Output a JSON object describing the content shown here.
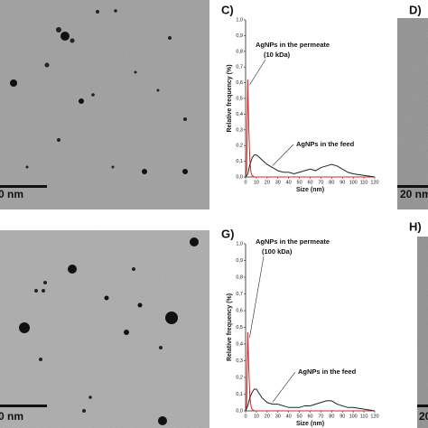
{
  "panels": [
    {
      "label": null,
      "scale_bar": "0 nm"
    },
    {
      "label": "D)",
      "scale_bar": "20 nm"
    },
    {
      "label": null,
      "scale_bar": "0 nm"
    },
    {
      "label": "H)",
      "scale_bar": "20"
    }
  ],
  "chart_data": [
    {
      "type": "line",
      "title": "C)",
      "xlabel": "Size (nm)",
      "ylabel": "Relative frequency (%)",
      "annotations": [
        "AgNPs in the permeate",
        "(10 kDa)",
        "AgNPs in the feed"
      ],
      "xlim": [
        0,
        120
      ],
      "xticks": [
        0,
        10,
        20,
        30,
        40,
        50,
        60,
        70,
        80,
        90,
        100,
        110,
        120
      ],
      "ylim": [
        0,
        1
      ],
      "yticks": [
        {
          "value": 0,
          "label": "0,0"
        },
        {
          "value": 0.1,
          "label": "0,1"
        },
        {
          "value": 0.2,
          "label": "0,2"
        },
        {
          "value": 0.3,
          "label": "0,3"
        },
        {
          "value": 0.4,
          "label": "0,4"
        },
        {
          "value": 0.5,
          "label": "0,5"
        },
        {
          "value": 0.6,
          "label": "0,6"
        },
        {
          "value": 0.7,
          "label": "0,7"
        },
        {
          "value": 0.8,
          "label": "0,8"
        },
        {
          "value": 0.9,
          "label": "0,9"
        },
        {
          "value": 1,
          "label": "1,0"
        }
      ],
      "series": [
        {
          "name": "AgNPs in the permeate",
          "color": "#e02020",
          "x": [
            0,
            1,
            2,
            3,
            4,
            5,
            6,
            8,
            10,
            20,
            40,
            120
          ],
          "values": [
            0,
            0.05,
            0.62,
            0.3,
            0.1,
            0.03,
            0.01,
            0,
            0,
            0,
            0,
            0
          ]
        },
        {
          "name": "AgNPs in the feed",
          "color": "#222222",
          "x": [
            0,
            2,
            4,
            6,
            8,
            10,
            12,
            15,
            20,
            25,
            30,
            35,
            40,
            45,
            50,
            55,
            60,
            65,
            70,
            75,
            80,
            85,
            90,
            95,
            100,
            110,
            120
          ],
          "values": [
            0,
            0.02,
            0.08,
            0.12,
            0.14,
            0.14,
            0.13,
            0.11,
            0.08,
            0.06,
            0.04,
            0.03,
            0.03,
            0.02,
            0.03,
            0.04,
            0.05,
            0.04,
            0.06,
            0.07,
            0.08,
            0.07,
            0.05,
            0.03,
            0.02,
            0.01,
            0
          ]
        }
      ]
    },
    {
      "type": "line",
      "title": "G)",
      "xlabel": "Size (nm)",
      "ylabel": "Relative frequency (%)",
      "annotations": [
        "AgNPs in the permeate",
        "(100 kDa)",
        "AgNPs in the feed"
      ],
      "xlim": [
        0,
        120
      ],
      "xticks": [
        0,
        10,
        20,
        30,
        40,
        50,
        60,
        70,
        80,
        90,
        100,
        110,
        120
      ],
      "ylim": [
        0,
        1
      ],
      "yticks": [
        {
          "value": 0,
          "label": "0,0"
        },
        {
          "value": 0.1,
          "label": "0,1"
        },
        {
          "value": 0.2,
          "label": "0,2"
        },
        {
          "value": 0.3,
          "label": "0,3"
        },
        {
          "value": 0.4,
          "label": "0,4"
        },
        {
          "value": 0.5,
          "label": "0,5"
        },
        {
          "value": 0.6,
          "label": "0,6"
        },
        {
          "value": 0.7,
          "label": "0,7"
        },
        {
          "value": 0.8,
          "label": "0,8"
        },
        {
          "value": 0.9,
          "label": "0,9"
        },
        {
          "value": 1,
          "label": "1,0"
        }
      ],
      "series": [
        {
          "name": "AgNPs in the permeate",
          "color": "#e02020",
          "x": [
            0,
            1,
            2,
            3,
            4,
            5,
            6,
            8,
            10,
            20,
            40,
            120
          ],
          "values": [
            0,
            0.04,
            0.47,
            0.25,
            0.08,
            0.03,
            0.01,
            0,
            0,
            0,
            0,
            0
          ]
        },
        {
          "name": "AgNPs in the feed",
          "color": "#222222",
          "x": [
            0,
            2,
            4,
            6,
            8,
            10,
            12,
            15,
            20,
            25,
            30,
            35,
            40,
            45,
            50,
            55,
            60,
            65,
            70,
            75,
            80,
            85,
            90,
            95,
            100,
            110,
            120
          ],
          "values": [
            0,
            0.03,
            0.08,
            0.11,
            0.13,
            0.13,
            0.11,
            0.08,
            0.05,
            0.04,
            0.04,
            0.03,
            0.02,
            0.02,
            0.02,
            0.03,
            0.03,
            0.04,
            0.05,
            0.06,
            0.06,
            0.04,
            0.03,
            0.02,
            0.02,
            0.01,
            0
          ]
        }
      ]
    }
  ]
}
